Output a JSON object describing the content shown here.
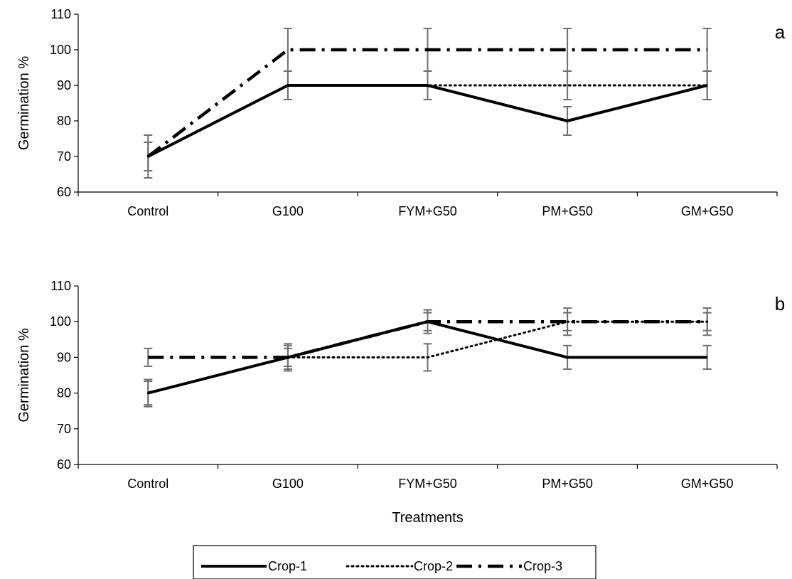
{
  "chart_data": [
    {
      "type": "line",
      "panel_label": "a",
      "categories": [
        "Control",
        "G100",
        "FYM+G50",
        "PM+G50",
        "GM+G50"
      ],
      "ylabel": "Germination %",
      "xlabel": "",
      "ylim": [
        60,
        110
      ],
      "yticks": [
        60,
        70,
        80,
        90,
        100,
        110
      ],
      "series": [
        {
          "name": "Crop-1",
          "values": [
            70,
            90,
            90,
            80,
            90
          ],
          "error": [
            4,
            4,
            4,
            4,
            4
          ],
          "style": "solid"
        },
        {
          "name": "Crop-2",
          "values": [
            70,
            90,
            90,
            90,
            90
          ],
          "error": [
            4,
            4,
            4,
            4,
            4
          ],
          "style": "dotted"
        },
        {
          "name": "Crop-3",
          "values": [
            70,
            100,
            100,
            100,
            100
          ],
          "error": [
            6,
            6,
            6,
            6,
            6
          ],
          "style": "dashdot"
        }
      ]
    },
    {
      "type": "line",
      "panel_label": "b",
      "categories": [
        "Control",
        "G100",
        "FYM+G50",
        "PM+G50",
        "GM+G50"
      ],
      "ylabel": "Germination %",
      "xlabel": "Treatments",
      "ylim": [
        60,
        110
      ],
      "yticks": [
        60,
        70,
        80,
        90,
        100,
        110
      ],
      "series": [
        {
          "name": "Crop-1",
          "values": [
            80,
            90,
            100,
            90,
            90
          ],
          "error": [
            3.3,
            3.3,
            3.3,
            3.3,
            3.3
          ],
          "style": "solid"
        },
        {
          "name": "Crop-2",
          "values": [
            80,
            90,
            90,
            100,
            100
          ],
          "error": [
            3.8,
            3.8,
            3.8,
            3.8,
            3.8
          ],
          "style": "dotted"
        },
        {
          "name": "Crop-3",
          "values": [
            90,
            90,
            100,
            100,
            100
          ],
          "error": [
            2.5,
            2.5,
            2.5,
            2.5,
            2.5
          ],
          "style": "dashdot"
        }
      ]
    }
  ],
  "legend": {
    "items": [
      {
        "label": "Crop-1",
        "style": "solid"
      },
      {
        "label": "Crop-2",
        "style": "dotted"
      },
      {
        "label": "Crop-3",
        "style": "dashdot"
      }
    ]
  },
  "colors": {
    "line": "#000000",
    "error_bar": "#6e6e6e",
    "axis": "#000000"
  }
}
